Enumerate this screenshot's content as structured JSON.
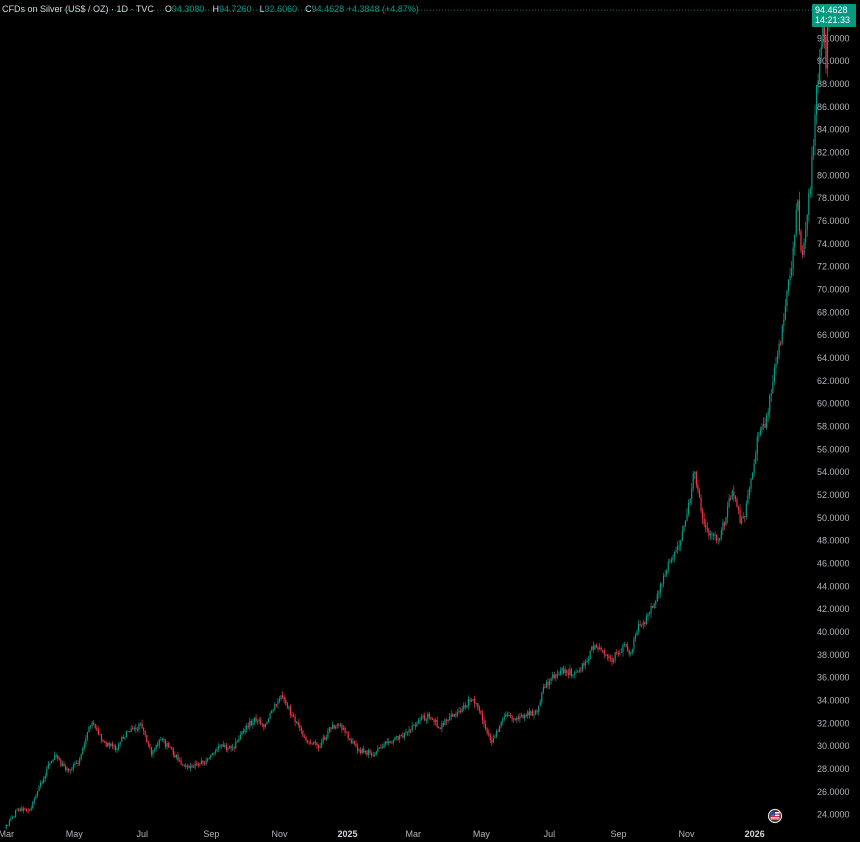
{
  "header": {
    "symbol": "CFDs on Silver (US$ / OZ) · 1D · TVC",
    "open_key": "O",
    "open": "94.3080",
    "high_key": "H",
    "high": "94.7260",
    "low_key": "L",
    "low": "92.6060",
    "close_key": "C",
    "close": "94.4628",
    "change": "+4.3848 (+4.87%)"
  },
  "price_badge": {
    "price": "94.4628",
    "countdown": "14:21:33"
  },
  "colors": {
    "up": "#089981",
    "down": "#f23645",
    "background": "#000000",
    "axis_text": "#b2b5be"
  },
  "chart_data": {
    "type": "candlestick",
    "title": "CFDs on Silver (US$ / OZ) · 1D · TVC",
    "ylim": [
      23,
      95
    ],
    "y_ticks": [
      "24.0000",
      "26.0000",
      "28.0000",
      "30.0000",
      "32.0000",
      "34.0000",
      "36.0000",
      "38.0000",
      "40.0000",
      "42.0000",
      "44.0000",
      "46.0000",
      "48.0000",
      "50.0000",
      "52.0000",
      "54.0000",
      "56.0000",
      "58.0000",
      "60.0000",
      "62.0000",
      "64.0000",
      "66.0000",
      "68.0000",
      "70.0000",
      "72.0000",
      "74.0000",
      "76.0000",
      "78.0000",
      "80.0000",
      "82.0000",
      "84.0000",
      "86.0000",
      "88.0000",
      "90.0000",
      "92.0000"
    ],
    "x_ticks": [
      {
        "label": "Mar",
        "t": 0,
        "year": false
      },
      {
        "label": "May",
        "t": 61,
        "year": false
      },
      {
        "label": "Jul",
        "t": 122,
        "year": false
      },
      {
        "label": "Sep",
        "t": 184,
        "year": false
      },
      {
        "label": "Nov",
        "t": 245,
        "year": false
      },
      {
        "label": "2025",
        "t": 306,
        "year": true
      },
      {
        "label": "Mar",
        "t": 365,
        "year": false
      },
      {
        "label": "May",
        "t": 426,
        "year": false
      },
      {
        "label": "Jul",
        "t": 487,
        "year": false
      },
      {
        "label": "Sep",
        "t": 549,
        "year": false
      },
      {
        "label": "Nov",
        "t": 610,
        "year": false
      },
      {
        "label": "2026",
        "t": 671,
        "year": true
      }
    ],
    "t_range": [
      -2,
      692
    ],
    "anchors": [
      [
        0,
        22.8
      ],
      [
        12,
        24.5
      ],
      [
        22,
        24.2
      ],
      [
        38,
        28.0
      ],
      [
        45,
        29.3
      ],
      [
        55,
        27.8
      ],
      [
        66,
        28.6
      ],
      [
        78,
        32.2
      ],
      [
        90,
        30.2
      ],
      [
        100,
        29.8
      ],
      [
        110,
        31.3
      ],
      [
        122,
        31.8
      ],
      [
        132,
        29.4
      ],
      [
        140,
        30.7
      ],
      [
        150,
        29.5
      ],
      [
        160,
        28.2
      ],
      [
        172,
        28.4
      ],
      [
        180,
        28.6
      ],
      [
        192,
        30.0
      ],
      [
        204,
        29.7
      ],
      [
        212,
        31.2
      ],
      [
        224,
        32.4
      ],
      [
        234,
        31.7
      ],
      [
        242,
        33.5
      ],
      [
        248,
        34.6
      ],
      [
        256,
        33.0
      ],
      [
        262,
        31.8
      ],
      [
        270,
        30.4
      ],
      [
        282,
        30.0
      ],
      [
        292,
        31.6
      ],
      [
        300,
        32.0
      ],
      [
        308,
        30.9
      ],
      [
        314,
        29.9
      ],
      [
        320,
        29.6
      ],
      [
        330,
        29.3
      ],
      [
        338,
        30.0
      ],
      [
        348,
        30.4
      ],
      [
        360,
        31.2
      ],
      [
        372,
        32.3
      ],
      [
        380,
        32.6
      ],
      [
        390,
        31.7
      ],
      [
        398,
        32.4
      ],
      [
        406,
        33.0
      ],
      [
        412,
        33.5
      ],
      [
        418,
        34.1
      ],
      [
        424,
        33.6
      ],
      [
        430,
        32.0
      ],
      [
        436,
        30.3
      ],
      [
        442,
        31.2
      ],
      [
        448,
        32.8
      ],
      [
        456,
        32.3
      ],
      [
        464,
        32.7
      ],
      [
        472,
        32.8
      ],
      [
        478,
        33.2
      ],
      [
        484,
        35.3
      ],
      [
        494,
        36.2
      ],
      [
        502,
        36.7
      ],
      [
        512,
        36.3
      ],
      [
        520,
        37.2
      ],
      [
        528,
        38.8
      ],
      [
        536,
        38.2
      ],
      [
        544,
        37.6
      ],
      [
        550,
        38.2
      ],
      [
        556,
        38.8
      ],
      [
        562,
        38.2
      ],
      [
        568,
        40.6
      ],
      [
        574,
        40.8
      ],
      [
        582,
        42.6
      ],
      [
        590,
        44.6
      ],
      [
        598,
        46.6
      ],
      [
        606,
        48.2
      ],
      [
        612,
        50.6
      ],
      [
        618,
        53.8
      ],
      [
        622,
        52.6
      ],
      [
        626,
        49.8
      ],
      [
        632,
        48.6
      ],
      [
        640,
        48.0
      ],
      [
        646,
        49.8
      ],
      [
        652,
        52.3
      ],
      [
        656,
        51.0
      ],
      [
        660,
        49.5
      ],
      [
        664,
        50.4
      ],
      [
        670,
        53.8
      ],
      [
        676,
        57.6
      ],
      [
        682,
        58.1
      ],
      [
        688,
        61.5
      ],
      [
        692,
        64.0
      ],
      [
        698,
        66.8
      ],
      [
        702,
        70.0
      ],
      [
        706,
        72.4
      ],
      [
        708,
        74.0
      ],
      [
        710,
        76.6
      ],
      [
        711,
        78.4
      ],
      [
        712,
        77.5
      ],
      [
        713,
        73.8
      ],
      [
        715,
        72.5
      ],
      [
        717,
        74.4
      ],
      [
        719,
        76.2
      ],
      [
        721,
        78.0
      ],
      [
        723,
        80.0
      ],
      [
        725,
        82.7
      ],
      [
        727,
        86.0
      ],
      [
        729,
        88.6
      ],
      [
        731,
        90.0
      ],
      [
        733,
        92.6
      ],
      [
        734,
        93.5
      ],
      [
        735,
        92.3
      ],
      [
        736,
        88.5
      ],
      [
        737,
        90.1
      ],
      [
        738,
        94.4628
      ]
    ],
    "last_candle": {
      "open": 94.308,
      "high": 94.726,
      "low": 92.606,
      "close": 94.4628
    }
  }
}
